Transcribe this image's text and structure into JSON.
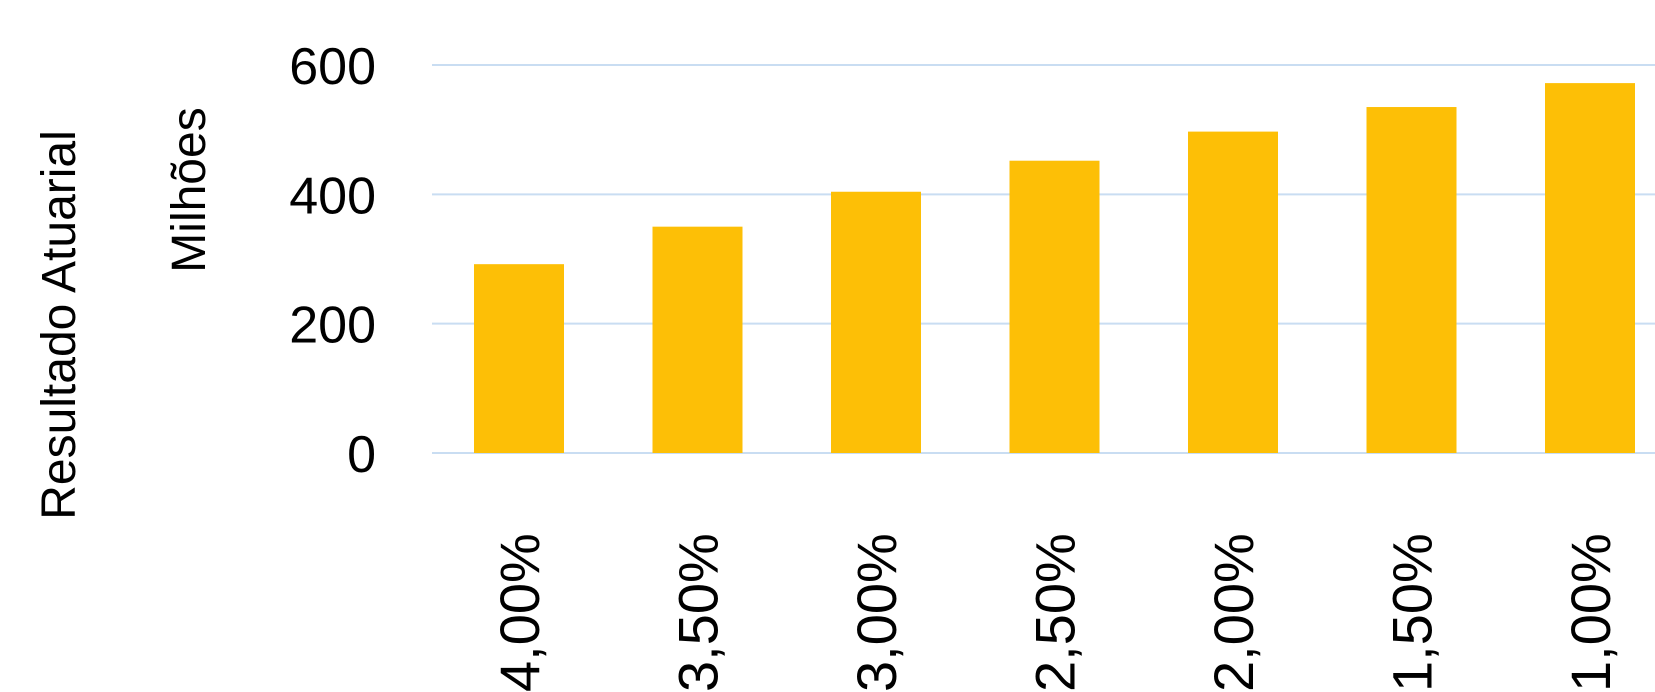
{
  "chart_data": {
    "type": "bar",
    "categories": [
      "4,00%",
      "3,50%",
      "3,00%",
      "2,50%",
      "2,00%",
      "1,50%",
      "1,00%"
    ],
    "values": [
      292,
      350,
      404,
      452,
      497,
      535,
      572
    ],
    "ylim": [
      0,
      600
    ],
    "yticks": [
      0,
      200,
      400,
      600
    ],
    "ylabel": "Resultado Atuarial",
    "yunit": "Milhões",
    "xlabel": "",
    "title": "",
    "grid": true,
    "legend": "none",
    "colors": {
      "bar": "#FDBF06",
      "grid": "#C9DDF2",
      "text": "#000000"
    }
  }
}
